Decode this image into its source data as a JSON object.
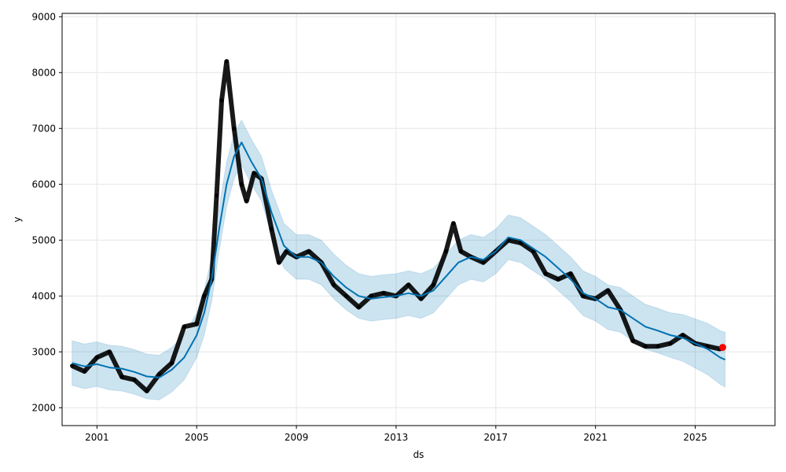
{
  "chart_data": {
    "type": "line",
    "title": "",
    "xlabel": "ds",
    "ylabel": "y",
    "xlim": [
      1999.6,
      2028.2
    ],
    "ylim": [
      1680,
      9060
    ],
    "grid": true,
    "x_ticks": [
      {
        "value": 2001,
        "label": "2001"
      },
      {
        "value": 2005,
        "label": "2005"
      },
      {
        "value": 2009,
        "label": "2009"
      },
      {
        "value": 2013,
        "label": "2013"
      },
      {
        "value": 2017,
        "label": "2017"
      },
      {
        "value": 2021,
        "label": "2021"
      },
      {
        "value": 2025,
        "label": "2025"
      }
    ],
    "y_ticks": [
      {
        "value": 2000,
        "label": "2000"
      },
      {
        "value": 3000,
        "label": "3000"
      },
      {
        "value": 4000,
        "label": "4000"
      },
      {
        "value": 5000,
        "label": "5000"
      },
      {
        "value": 6000,
        "label": "6000"
      },
      {
        "value": 7000,
        "label": "7000"
      },
      {
        "value": 8000,
        "label": "8000"
      },
      {
        "value": 9000,
        "label": "9000"
      }
    ],
    "colors": {
      "forecast_line": "#0072B2",
      "uncertainty_band": "#0072B2",
      "observations": "#000000",
      "highlight": "#ff0000",
      "grid": "#e6e6e6"
    },
    "series": [
      {
        "kind": "forecast",
        "x": [
          2000.0,
          2000.5,
          2001.0,
          2001.5,
          2002.0,
          2002.5,
          2003.0,
          2003.5,
          2004.0,
          2004.5,
          2005.0,
          2005.3,
          2005.6,
          2005.9,
          2006.2,
          2006.5,
          2006.8,
          2007.2,
          2007.6,
          2008.0,
          2008.5,
          2009.0,
          2009.5,
          2010.0,
          2010.5,
          2011.0,
          2011.5,
          2012.0,
          2012.5,
          2013.0,
          2013.5,
          2014.0,
          2014.5,
          2015.0,
          2015.5,
          2016.0,
          2016.5,
          2017.0,
          2017.5,
          2018.0,
          2018.5,
          2019.0,
          2019.5,
          2020.0,
          2020.5,
          2021.0,
          2021.5,
          2022.0,
          2022.5,
          2023.0,
          2023.5,
          2024.0,
          2024.5,
          2025.0,
          2025.5,
          2026.0,
          2026.2
        ],
        "y": [
          2800,
          2740,
          2780,
          2720,
          2700,
          2640,
          2560,
          2540,
          2680,
          2900,
          3300,
          3700,
          4300,
          5200,
          6000,
          6500,
          6750,
          6400,
          6100,
          5500,
          4900,
          4700,
          4700,
          4600,
          4350,
          4150,
          4000,
          3950,
          3980,
          4000,
          4050,
          4000,
          4100,
          4350,
          4600,
          4700,
          4650,
          4800,
          5050,
          5000,
          4850,
          4700,
          4500,
          4300,
          4050,
          3950,
          3800,
          3750,
          3600,
          3450,
          3380,
          3300,
          3250,
          3150,
          3050,
          2900,
          2860
        ],
        "band": [
          400,
          400,
          400,
          400,
          400,
          400,
          400,
          400,
          400,
          400,
          400,
          400,
          400,
          400,
          400,
          400,
          400,
          400,
          400,
          400,
          400,
          400,
          400,
          400,
          400,
          400,
          400,
          400,
          400,
          400,
          400,
          400,
          400,
          400,
          400,
          400,
          400,
          400,
          400,
          400,
          400,
          400,
          400,
          400,
          400,
          400,
          400,
          400,
          400,
          400,
          400,
          400,
          420,
          440,
          460,
          480,
          490
        ]
      },
      {
        "kind": "observed",
        "x": [
          2000.0,
          2000.5,
          2001.0,
          2001.5,
          2002.0,
          2002.5,
          2003.0,
          2003.5,
          2004.0,
          2004.5,
          2005.0,
          2005.3,
          2005.6,
          2005.8,
          2006.0,
          2006.2,
          2006.5,
          2006.8,
          2007.0,
          2007.3,
          2007.6,
          2008.0,
          2008.3,
          2008.6,
          2009.0,
          2009.5,
          2010.0,
          2010.5,
          2011.0,
          2011.5,
          2012.0,
          2012.5,
          2013.0,
          2013.5,
          2014.0,
          2014.5,
          2015.0,
          2015.3,
          2015.6,
          2016.0,
          2016.5,
          2017.0,
          2017.5,
          2018.0,
          2018.5,
          2019.0,
          2019.5,
          2020.0,
          2020.5,
          2021.0,
          2021.5,
          2022.0,
          2022.5,
          2023.0,
          2023.5,
          2024.0,
          2024.5,
          2025.0,
          2025.5,
          2026.0
        ],
        "y": [
          2750,
          2650,
          2900,
          3000,
          2550,
          2500,
          2300,
          2600,
          2800,
          3450,
          3500,
          4000,
          4300,
          5800,
          7500,
          8200,
          7000,
          6000,
          5700,
          6200,
          6100,
          5200,
          4600,
          4800,
          4700,
          4800,
          4600,
          4200,
          4000,
          3800,
          4000,
          4050,
          4000,
          4200,
          3950,
          4200,
          4800,
          5300,
          4800,
          4700,
          4600,
          4800,
          5000,
          4950,
          4800,
          4400,
          4300,
          4400,
          4000,
          3950,
          4100,
          3750,
          3200,
          3100,
          3100,
          3150,
          3300,
          3150,
          3100,
          3050
        ]
      },
      {
        "kind": "highlight",
        "x": [
          2026.1
        ],
        "y": [
          3080
        ]
      }
    ]
  }
}
